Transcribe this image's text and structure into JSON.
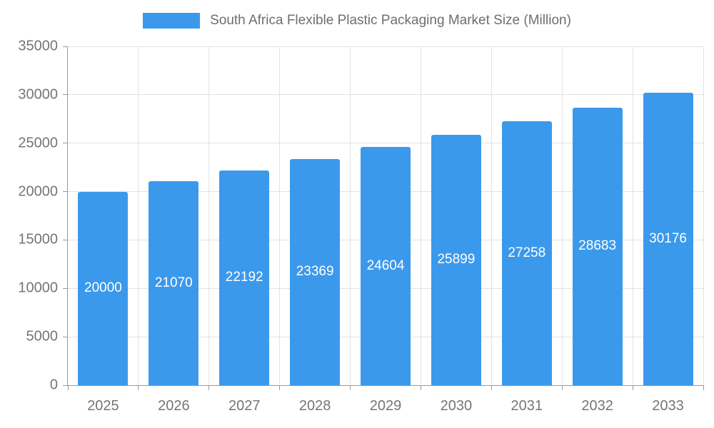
{
  "legend": {
    "title": "South Africa Flexible Plastic Packaging Market Size (Million)"
  },
  "colors": {
    "bar": "#3b99ec",
    "axis": "#9a9a9a",
    "grid": "#e2e2e2",
    "tick_text": "#757575",
    "value_text": "#ffffff",
    "legend_text": "#6e6e6e"
  },
  "chart_data": {
    "type": "bar",
    "title": "South Africa Flexible Plastic Packaging Market Size (Million)",
    "categories": [
      "2025",
      "2026",
      "2027",
      "2028",
      "2029",
      "2030",
      "2031",
      "2032",
      "2033"
    ],
    "values": [
      20000,
      21070,
      22192,
      23369,
      24604,
      25899,
      27258,
      28683,
      30176
    ],
    "xlabel": "",
    "ylabel": "",
    "ylim": [
      0,
      35000
    ],
    "ytick_step": 5000,
    "yticks": [
      0,
      5000,
      10000,
      15000,
      20000,
      25000,
      30000,
      35000
    ],
    "grid": true,
    "legend_position": "top",
    "bar_color": "#3b99ec",
    "value_labels": "inside-middle"
  }
}
